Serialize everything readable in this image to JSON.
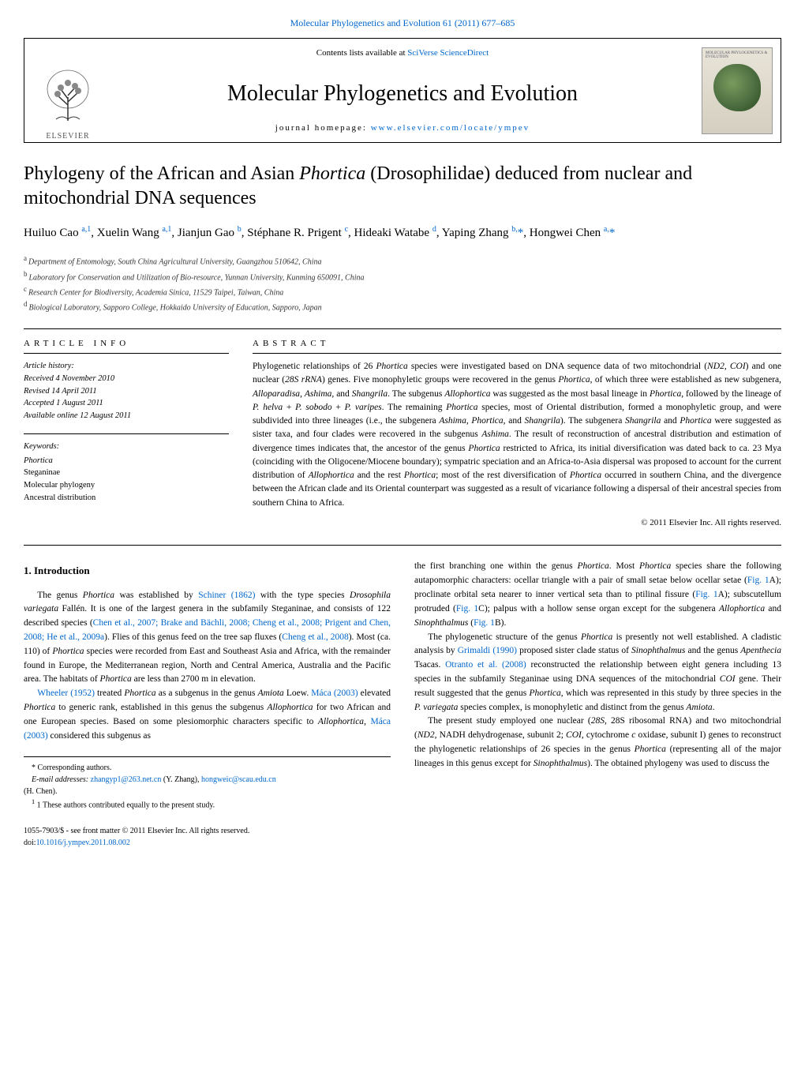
{
  "journal": {
    "top_link_text": "Molecular Phylogenetics and Evolution 61 (2011) 677–685",
    "contents_line_prefix": "Contents lists available at ",
    "contents_line_link": "SciVerse ScienceDirect",
    "name": "Molecular Phylogenetics and Evolution",
    "homepage_prefix": "journal homepage: ",
    "homepage_url": "www.elsevier.com/locate/ympev",
    "elsevier_label": "ELSEVIER",
    "cover_label": "MOLECULAR PHYLOGENETICS & EVOLUTION"
  },
  "article": {
    "title_plain_prefix": "Phylogeny of the African and Asian ",
    "title_genus": "Phortica",
    "title_plain_suffix": " (Drosophilidae) deduced from nuclear and mitochondrial DNA sequences",
    "authors_html": "Huiluo Cao <sup>a,1</sup>, Xuelin Wang <sup>a,1</sup>, Jianjun Gao <sup>b</sup>, Stéphane R. Prigent <sup>c</sup>, Hideaki Watabe <sup>d</sup>, Yaping Zhang <sup>b,</sup><span class=\"corr\">*</span>, Hongwei Chen <sup>a,</sup><span class=\"corr\">*</span>",
    "affiliations": {
      "a": "Department of Entomology, South China Agricultural University, Guangzhou 510642, China",
      "b": "Laboratory for Conservation and Utilization of Bio-resource, Yunnan University, Kunming 650091, China",
      "c": "Research Center for Biodiversity, Academia Sinica, 11529 Taipei, Taiwan, China",
      "d": "Biological Laboratory, Sapporo College, Hokkaido University of Education, Sapporo, Japan"
    }
  },
  "info": {
    "label": "ARTICLE INFO",
    "history_label": "Article history:",
    "received": "Received 4 November 2010",
    "revised": "Revised 14 April 2011",
    "accepted": "Accepted 1 August 2011",
    "online": "Available online 12 August 2011",
    "keywords_label": "Keywords:",
    "keywords": [
      "Phortica",
      "Steganinae",
      "Molecular phylogeny",
      "Ancestral distribution"
    ]
  },
  "abstract": {
    "label": "ABSTRACT",
    "text_html": "Phylogenetic relationships of 26 <span class=\"genus\">Phortica</span> species were investigated based on DNA sequence data of two mitochondrial (<span class=\"genus\">ND2</span>, <span class=\"genus\">COI</span>) and one nuclear (<span class=\"genus\">28S rRNA</span>) genes. Five monophyletic groups were recovered in the genus <span class=\"genus\">Phortica</span>, of which three were established as new subgenera, <span class=\"genus\">Alloparadisa</span>, <span class=\"genus\">Ashima</span>, and <span class=\"genus\">Shangrila</span>. The subgenus <span class=\"genus\">Allophortica</span> was suggested as the most basal lineage in <span class=\"genus\">Phortica</span>, followed by the lineage of <span class=\"genus\">P. helva</span> + <span class=\"genus\">P. sobodo</span> + <span class=\"genus\">P. varipes</span>. The remaining <span class=\"genus\">Phortica</span> species, most of Oriental distribution, formed a monophyletic group, and were subdivided into three lineages (i.e., the subgenera <span class=\"genus\">Ashima</span>, <span class=\"genus\">Phortica</span>, and <span class=\"genus\">Shangrila</span>). The subgenera <span class=\"genus\">Shangrila</span> and <span class=\"genus\">Phortica</span> were suggested as sister taxa, and four clades were recovered in the subgenus <span class=\"genus\">Ashima</span>. The result of reconstruction of ancestral distribution and estimation of divergence times indicates that, the ancestor of the genus <span class=\"genus\">Phortica</span> restricted to Africa, its initial diversification was dated back to ca. 23 Mya (coinciding with the Oligocene/Miocene boundary); sympatric speciation and an Africa-to-Asia dispersal was proposed to account for the current distribution of <span class=\"genus\">Allophortica</span> and the rest <span class=\"genus\">Phortica</span>; most of the rest diversification of <span class=\"genus\">Phortica</span> occurred in southern China, and the divergence between the African clade and its Oriental counterpart was suggested as a result of vicariance following a dispersal of their ancestral species from southern China to Africa.",
    "copyright": "© 2011 Elsevier Inc. All rights reserved."
  },
  "body": {
    "intro_heading": "1. Introduction",
    "col1_p1_html": "The genus <em>Phortica</em> was established by <a>Schiner (1862)</a> with the type species <em>Drosophila variegata</em> Fallén. It is one of the largest genera in the subfamily Steganinae, and consists of 122 described species (<a>Chen et al., 2007; Brake and Bächli, 2008; Cheng et al., 2008; Prigent and Chen, 2008; He et al., 2009a</a>). Flies of this genus feed on the tree sap fluxes (<a>Cheng et al., 2008</a>). Most (ca. 110) of <em>Phortica</em> species were recorded from East and Southeast Asia and Africa, with the remainder found in Europe, the Mediterranean region, North and Central America, Australia and the Pacific area. The habitats of <em>Phortica</em> are less than 2700 m in elevation.",
    "col1_p2_html": "<a>Wheeler (1952)</a> treated <em>Phortica</em> as a subgenus in the genus <em>Amiota</em> Loew. <a>Máca (2003)</a> elevated <em>Phortica</em> to generic rank, established in this genus the subgenus <em>Allophortica</em> for two African and one European species. Based on some plesiomorphic characters specific to <em>Allophortica</em>, <a>Máca (2003)</a> considered this subgenus as",
    "col2_p1_html": "the first branching one within the genus <em>Phortica</em>. Most <em>Phortica</em> species share the following autapomorphic characters: ocellar triangle with a pair of small setae below ocellar setae (<a>Fig. 1</a>A); proclinate orbital seta nearer to inner vertical seta than to ptilinal fissure (<a>Fig. 1</a>A); subscutellum protruded (<a>Fig. 1</a>C); palpus with a hollow sense organ except for the subgenera <em>Allophortica</em> and <em>Sinophthalmus</em> (<a>Fig. 1</a>B).",
    "col2_p2_html": "The phylogenetic structure of the genus <em>Phortica</em> is presently not well established. A cladistic analysis by <a>Grimaldi (1990)</a> proposed sister clade status of <em>Sinophthalmus</em> and the genus <em>Apenthecia</em> Tsacas. <a>Otranto et al. (2008)</a> reconstructed the relationship between eight genera including 13 species in the subfamily Steganinae using DNA sequences of the mitochondrial <em>COI</em> gene. Their result suggested that the genus <em>Phortica</em>, which was represented in this study by three species in the <em>P. variegata</em> species complex, is monophyletic and distinct from the genus <em>Amiota</em>.",
    "col2_p3_html": "The present study employed one nuclear (<em>28S</em>, 28S ribosomal RNA) and two mitochondrial (<em>ND2</em>, NADH dehydrogenase, subunit 2; <em>COI</em>, cytochrome <em>c</em> oxidase, subunit I) genes to reconstruct the phylogenetic relationships of 26 species in the genus <em>Phortica</em> (representing all of the major lineages in this genus except for <em>Sinophthalmus</em>). The obtained phylogeny was used to discuss the"
  },
  "footnotes": {
    "corr_label": "* Corresponding authors.",
    "email_prefix": "E-mail addresses: ",
    "email1": "zhangyp1@263.net.cn",
    "email1_who": " (Y. Zhang), ",
    "email2": "hongweic@scau.edu.cn",
    "email2_who": " (H. Chen).",
    "equal": "1  These authors contributed equally to the present study."
  },
  "footer": {
    "front_matter": "1055-7903/$ - see front matter © 2011 Elsevier Inc. All rights reserved.",
    "doi_prefix": "doi:",
    "doi": "10.1016/j.ympev.2011.08.002"
  },
  "colors": {
    "link": "#0066cc",
    "text": "#000000",
    "elsevier_orange": "#ff6600"
  }
}
